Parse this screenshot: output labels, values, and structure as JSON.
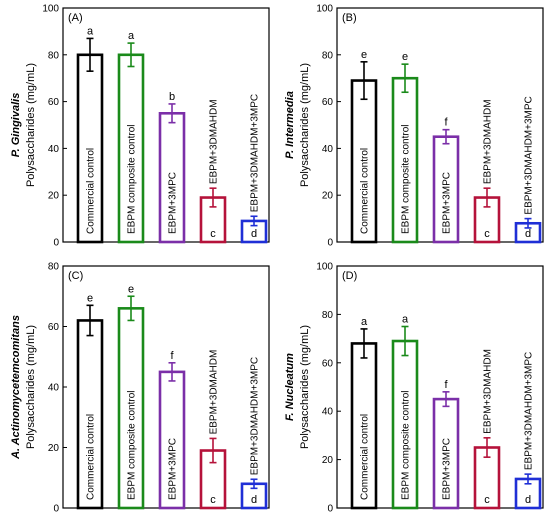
{
  "chart_data": [
    {
      "type": "bar",
      "panel": "(A)",
      "organism": "P. Gingivalis",
      "ylabel": "Polysaccharides (mg/mL)",
      "ylim": [
        0,
        100
      ],
      "yticks": [
        "0",
        "20",
        "40",
        "60",
        "80",
        "100"
      ],
      "categories": [
        "Commercial  control",
        "EBPM composite control",
        "EBPM+3MPC",
        "EBPM+3DMAHDM",
        "EBPM+3DMAHDM+3MPC"
      ],
      "values": [
        80,
        80,
        55,
        19,
        9
      ],
      "errors": [
        7,
        5,
        4,
        4,
        2
      ],
      "letters": [
        "a",
        "a",
        "b",
        "c",
        "d"
      ],
      "colors": [
        "#000000",
        "#1a8a1a",
        "#7b2fa8",
        "#b5123a",
        "#1f2fd6"
      ]
    },
    {
      "type": "bar",
      "panel": "(B)",
      "organism": "P. Intermedia",
      "ylabel": "Polysaccharides (mg/mL)",
      "ylim": [
        0,
        100
      ],
      "yticks": [
        "0",
        "20",
        "40",
        "60",
        "80",
        "100"
      ],
      "categories": [
        "Commercial  control",
        "EBPM composite control",
        "EBPM+3MPC",
        "EBPM+3DMAHDM",
        "EBPM+3DMAHDM+3MPC"
      ],
      "values": [
        69,
        70,
        45,
        19,
        8
      ],
      "errors": [
        8,
        6,
        3,
        4,
        2
      ],
      "letters": [
        "e",
        "e",
        "f",
        "c",
        "d"
      ],
      "colors": [
        "#000000",
        "#1a8a1a",
        "#7b2fa8",
        "#b5123a",
        "#1f2fd6"
      ]
    },
    {
      "type": "bar",
      "panel": "(C)",
      "organism": "A. Actinomycetemcomitans",
      "ylabel": "Polysaccharides (mg/mL)",
      "ylim": [
        0,
        80
      ],
      "yticks": [
        "0",
        "20",
        "40",
        "60",
        "80"
      ],
      "categories": [
        "Commercial  control",
        "EBPM composite control",
        "EBPM+3MPC",
        "EBPM+3DMAHDM",
        "EBPM+3DMAHDM+3MPC"
      ],
      "values": [
        62,
        66,
        45,
        19,
        8
      ],
      "errors": [
        5,
        4,
        3,
        4,
        1.5
      ],
      "letters": [
        "e",
        "e",
        "f",
        "c",
        "d"
      ],
      "colors": [
        "#000000",
        "#1a8a1a",
        "#7b2fa8",
        "#b5123a",
        "#1f2fd6"
      ]
    },
    {
      "type": "bar",
      "panel": "(D)",
      "organism": "F. Nucleatum",
      "ylabel": "Polysaccharides (mg/mL)",
      "ylim": [
        0,
        100
      ],
      "yticks": [
        "0",
        "20",
        "40",
        "60",
        "80",
        "100"
      ],
      "categories": [
        "Commercial  control",
        "EBPM composite control",
        "EBPM+3MPC",
        "EBPM+3DMAHDM",
        "EBPM+3DMAHDM+3MPC"
      ],
      "values": [
        68,
        69,
        45,
        25,
        12
      ],
      "errors": [
        6,
        6,
        3,
        4,
        2
      ],
      "letters": [
        "a",
        "a",
        "f",
        "c",
        "d"
      ],
      "colors": [
        "#000000",
        "#1a8a1a",
        "#7b2fa8",
        "#b5123a",
        "#1f2fd6"
      ]
    }
  ]
}
